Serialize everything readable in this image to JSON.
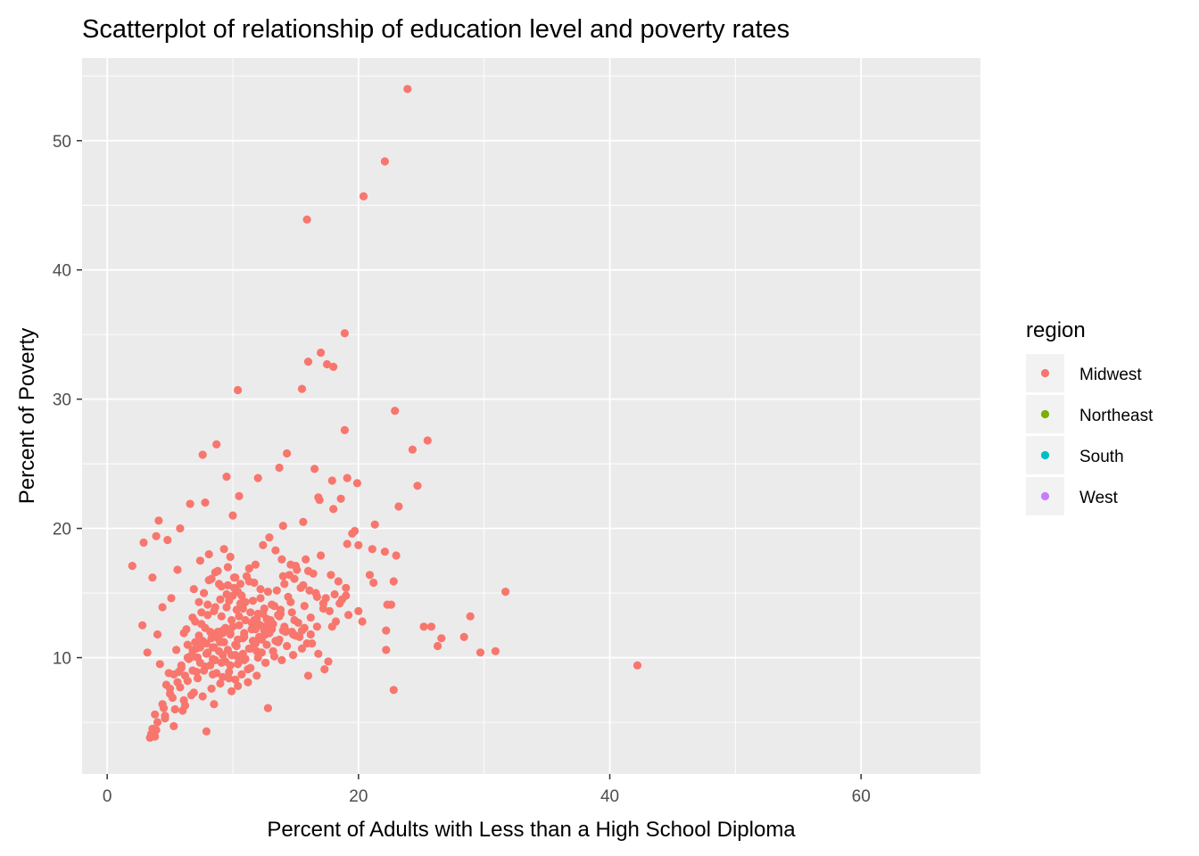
{
  "chart_data": {
    "type": "scatter",
    "title": "Scatterplot of relationship of education level and poverty rates",
    "xlabel": "Percent of Adults with Less than a High School Diploma",
    "ylabel": "Percent of Poverty",
    "xlim": [
      -2,
      69.5
    ],
    "ylim": [
      1,
      56.4
    ],
    "x_major_ticks": [
      0,
      20,
      40,
      60
    ],
    "x_minor_ticks": [
      10,
      30,
      50
    ],
    "y_major_ticks": [
      10,
      20,
      30,
      40,
      50
    ],
    "y_minor_ticks": [
      5,
      15,
      25,
      35,
      45,
      55
    ],
    "tick_labels_x": [
      "0",
      "20",
      "40",
      "60"
    ],
    "tick_labels_y": [
      "10",
      "20",
      "30",
      "40",
      "50"
    ],
    "grid": true,
    "panel_background": "#ebebeb",
    "grid_color": "#ffffff",
    "legend": {
      "title": "region",
      "placement": "right",
      "entries": [
        {
          "label": "Midwest",
          "color": "#F8766D"
        },
        {
          "label": "Northeast",
          "color": "#7CAE00"
        },
        {
          "label": "South",
          "color": "#00BFC4"
        },
        {
          "label": "West",
          "color": "#C77CFF"
        }
      ]
    },
    "series": [
      {
        "name": "Midwest",
        "color": "#F8766D",
        "x": [
          23.9,
          22.1,
          20.4,
          15.9,
          18.9,
          17.0,
          16.0,
          17.5,
          18.0,
          10.4,
          15.5,
          22.9,
          18.9,
          25.5,
          24.3,
          8.7,
          7.6,
          16.5,
          14.3,
          24.7,
          9.5,
          13.7,
          12.0,
          19.9,
          16.8,
          16.9,
          18.6,
          17.9,
          19.1,
          6.6,
          10.5,
          7.8,
          23.2,
          21.3,
          4.1,
          5.8,
          18.0,
          15.6,
          10.0,
          19.5,
          14.0,
          2.9,
          3.9,
          4.8,
          19.1,
          19.7,
          23.0,
          21.1,
          20.0,
          22.1,
          2.0,
          3.6,
          20.9,
          31.7,
          21.2,
          22.8,
          19.0,
          22.6,
          22.3,
          28.9,
          25.2,
          25.8,
          2.8,
          26.6,
          28.4,
          20.0,
          20.3,
          22.2,
          26.3,
          30.9,
          29.7,
          22.2,
          42.2,
          16.0,
          3.5,
          3.8,
          4.6,
          5.3,
          6.0,
          7.9,
          8.5,
          12.8,
          17.3,
          22.8,
          3.2,
          4.0,
          4.4,
          5.1,
          5.6,
          6.3,
          6.9,
          7.4,
          8.1,
          8.8,
          9.3,
          9.8,
          10.2,
          10.7,
          11.3,
          11.8,
          12.4,
          12.9,
          13.4,
          13.9,
          14.5,
          15.0,
          15.6,
          16.1,
          16.7,
          17.2,
          17.9,
          18.5,
          4.2,
          4.9,
          5.5,
          6.1,
          6.8,
          7.3,
          7.7,
          8.3,
          8.9,
          9.5,
          10.1,
          10.6,
          11.1,
          11.7,
          12.2,
          12.8,
          13.3,
          13.8,
          14.4,
          14.9,
          15.5,
          16.2,
          16.8,
          17.6,
          5.0,
          5.7,
          6.4,
          7.0,
          7.5,
          8.0,
          8.6,
          9.1,
          9.7,
          10.3,
          10.8,
          11.4,
          11.9,
          12.5,
          13.0,
          13.6,
          14.1,
          14.7,
          15.3,
          15.9,
          6.2,
          6.7,
          7.2,
          7.8,
          8.4,
          8.9,
          9.4,
          9.9,
          10.5,
          11.0,
          11.5,
          12.0,
          12.6,
          13.1,
          13.7,
          14.3,
          14.8,
          5.9,
          6.5,
          7.1,
          7.6,
          8.2,
          8.7,
          9.2,
          9.8,
          10.4,
          10.9,
          11.6,
          12.1,
          12.7,
          13.2,
          13.9,
          4.7,
          5.3,
          5.9,
          6.6,
          7.2,
          7.9,
          8.5,
          9.0,
          9.6,
          10.2,
          10.8,
          11.4,
          12.0,
          12.6,
          3.8,
          4.4,
          5.0,
          5.6,
          6.2,
          6.8,
          7.4,
          8.0,
          8.6,
          9.2,
          9.8,
          10.5,
          11.2,
          11.9,
          3.6,
          4.0,
          4.5,
          5.2,
          5.8,
          6.4,
          7.1,
          7.8,
          8.4,
          9.1,
          9.7,
          10.4,
          3.4,
          3.9,
          4.6,
          5.4,
          6.1,
          6.9,
          7.6,
          8.3,
          9.0,
          9.9,
          7.0,
          7.5,
          8.0,
          8.5,
          9.0,
          9.5,
          10.0,
          10.5,
          11.0,
          11.5,
          12.0,
          12.5,
          13.0,
          7.3,
          7.8,
          8.3,
          8.8,
          9.3,
          9.8,
          10.3,
          10.8,
          11.3,
          11.8,
          12.3,
          6.9,
          7.4,
          7.9,
          8.4,
          8.9,
          9.4,
          9.9,
          10.4,
          10.9,
          11.4,
          7.7,
          8.2,
          8.7,
          9.2,
          9.7,
          10.2,
          10.7,
          11.2,
          8.1,
          8.6,
          9.1,
          9.6,
          10.1,
          10.6,
          6.4,
          6.8,
          7.2,
          11.7,
          12.2,
          12.7,
          13.2,
          13.7,
          14.2,
          14.7,
          15.2,
          15.7,
          16.2,
          16.7,
          17.2,
          17.7,
          18.2,
          18.7,
          19.2,
          14.0,
          14.6,
          15.1,
          15.8,
          16.4,
          17.0,
          17.8,
          18.4,
          19.0,
          13.5,
          14.1,
          14.9,
          15.4,
          16.0,
          16.6,
          17.4,
          18.1,
          12.3,
          12.9,
          13.6,
          14.2,
          15.0,
          15.7,
          16.3,
          11.5,
          12.1,
          12.8,
          13.4,
          14.0,
          14.8,
          15.5,
          10.8,
          11.6,
          12.4,
          13.1,
          13.8,
          14.6,
          10.2,
          11.0,
          11.9,
          12.6,
          13.3,
          9.6,
          10.4,
          11.3,
          12.2,
          9.2,
          10.0,
          10.9,
          11.8
        ],
        "y": [
          54.0,
          48.4,
          45.7,
          43.9,
          35.1,
          33.6,
          32.9,
          32.7,
          32.5,
          30.7,
          30.8,
          29.1,
          27.6,
          26.8,
          26.1,
          26.5,
          25.7,
          24.6,
          25.8,
          23.3,
          24.0,
          24.7,
          23.9,
          23.5,
          22.4,
          22.2,
          22.3,
          23.7,
          23.9,
          21.9,
          22.5,
          22.0,
          21.7,
          20.3,
          20.6,
          20.0,
          21.5,
          20.5,
          21.0,
          19.6,
          20.2,
          18.9,
          19.4,
          19.1,
          18.8,
          19.8,
          17.9,
          18.4,
          18.7,
          18.2,
          17.1,
          16.2,
          16.4,
          15.1,
          15.8,
          15.9,
          15.4,
          14.1,
          14.1,
          13.2,
          12.4,
          12.4,
          12.5,
          11.5,
          11.6,
          13.6,
          12.8,
          12.1,
          10.9,
          10.5,
          10.4,
          10.6,
          9.4,
          8.6,
          4.1,
          3.9,
          5.3,
          4.7,
          5.9,
          4.3,
          6.4,
          6.1,
          9.1,
          7.5,
          10.4,
          11.8,
          13.9,
          14.6,
          16.8,
          12.2,
          15.3,
          17.5,
          18.0,
          16.7,
          18.4,
          17.8,
          16.2,
          14.8,
          16.9,
          17.2,
          18.7,
          19.3,
          18.3,
          17.6,
          16.4,
          17.1,
          15.6,
          15.2,
          14.7,
          13.8,
          12.4,
          14.2,
          9.5,
          8.8,
          10.6,
          11.9,
          13.1,
          14.3,
          15.0,
          16.1,
          15.7,
          14.9,
          15.4,
          14.2,
          16.3,
          15.8,
          14.6,
          15.1,
          14.0,
          13.4,
          14.7,
          12.9,
          12.1,
          11.8,
          10.3,
          9.7,
          7.6,
          8.9,
          10.0,
          11.2,
          12.6,
          13.3,
          13.9,
          13.2,
          14.4,
          13.7,
          14.1,
          13.5,
          13.0,
          13.8,
          12.7,
          13.3,
          12.4,
          12.0,
          11.6,
          11.1,
          6.3,
          7.1,
          8.4,
          9.3,
          10.8,
          11.4,
          12.3,
          12.9,
          12.5,
          12.9,
          12.2,
          12.6,
          11.8,
          12.2,
          11.4,
          10.9,
          10.2,
          9.2,
          9.9,
          10.7,
          11.3,
          12.0,
          11.7,
          12.1,
          11.9,
          11.4,
          11.9,
          11.3,
          11.6,
          11.0,
          10.5,
          9.8,
          7.9,
          8.7,
          9.4,
          10.1,
          10.9,
          11.1,
          10.8,
          11.2,
          10.6,
          11.0,
          10.3,
          10.7,
          10.0,
          9.6,
          5.6,
          6.4,
          7.2,
          8.1,
          8.6,
          9.0,
          9.6,
          10.4,
          9.8,
          10.2,
          9.4,
          9.9,
          9.1,
          8.6,
          4.5,
          5.0,
          6.1,
          6.9,
          7.7,
          8.2,
          8.9,
          9.3,
          8.7,
          9.6,
          8.4,
          7.8,
          3.8,
          4.4,
          5.5,
          6.0,
          6.7,
          7.3,
          7.0,
          7.6,
          8.0,
          7.4,
          12.8,
          13.5,
          14.1,
          13.6,
          14.5,
          13.9,
          14.8,
          13.2,
          14.3,
          12.7,
          13.4,
          12.1,
          12.9,
          11.7,
          12.3,
          11.5,
          12.0,
          11.2,
          11.8,
          10.9,
          11.5,
          10.7,
          11.1,
          10.4,
          10.1,
          10.8,
          10.3,
          9.9,
          10.5,
          9.7,
          10.2,
          9.5,
          9.8,
          9.2,
          9.0,
          9.4,
          8.8,
          8.5,
          8.9,
          8.3,
          8.7,
          8.1,
          16.0,
          16.6,
          15.5,
          17.0,
          16.2,
          15.7,
          11.0,
          10.6,
          10.0,
          12.9,
          12.5,
          13.0,
          12.6,
          13.2,
          12.1,
          13.5,
          12.7,
          14.0,
          13.1,
          12.4,
          14.2,
          13.6,
          12.8,
          14.5,
          13.3,
          16.3,
          17.2,
          16.8,
          17.6,
          16.5,
          17.9,
          16.4,
          15.9,
          14.8,
          15.2,
          15.7,
          16.1,
          15.4,
          16.7,
          15.0,
          14.6,
          14.9,
          11.4,
          11.9,
          11.2,
          12.0,
          11.7,
          12.3,
          11.1,
          12.2,
          11.6,
          12.6,
          11.3,
          12.1,
          11.8,
          10.7,
          13.8,
          14.4,
          13.4,
          14.1,
          13.7,
          14.3,
          10.2,
          9.9,
          10.5,
          9.6,
          10.1,
          15.6,
          15.1,
          15.9,
          15.3,
          11.9,
          12.4,
          11.6,
          12.2
        ]
      },
      {
        "name": "Northeast",
        "color": "#7CAE00",
        "x": [],
        "y": []
      },
      {
        "name": "South",
        "color": "#00BFC4",
        "x": [],
        "y": []
      },
      {
        "name": "West",
        "color": "#C77CFF",
        "x": [],
        "y": []
      }
    ]
  }
}
